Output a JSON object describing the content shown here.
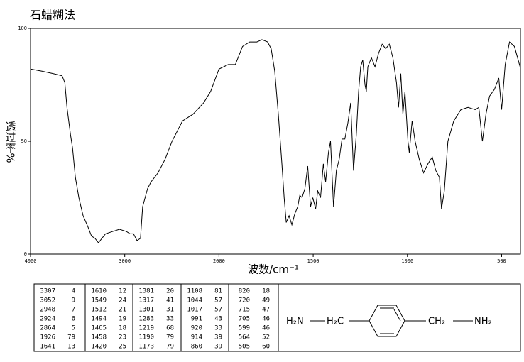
{
  "chart_data": {
    "type": "line",
    "title": "石蜡糊法",
    "x_label": "波数/cm⁻¹",
    "y_label": "透过率%",
    "xlim": [
      4000,
      400
    ],
    "ylim": [
      0,
      100
    ],
    "xticks": [
      4000,
      3000,
      2000,
      1500,
      1000,
      500
    ],
    "yticks": [
      0,
      50,
      100
    ],
    "series": [
      {
        "name": null,
        "color": "#000000",
        "x": [
          4000,
          3874,
          3762,
          3665,
          3636,
          3613,
          3576,
          3554,
          3524,
          3487,
          3442,
          3390,
          3353,
          3316,
          3279,
          3242,
          3204,
          3130,
          3056,
          2981,
          2944,
          2907,
          2870,
          2833,
          2810,
          2758,
          2721,
          2647,
          2572,
          2498,
          2387,
          2275,
          2163,
          2089,
          2000,
          1951,
          1913,
          1875,
          1837,
          1799,
          1772,
          1742,
          1723,
          1704,
          1685,
          1666,
          1654,
          1643,
          1628,
          1613,
          1597,
          1582,
          1571,
          1559,
          1544,
          1529,
          1514,
          1502,
          1487,
          1476,
          1461,
          1446,
          1434,
          1419,
          1408,
          1392,
          1377,
          1362,
          1347,
          1332,
          1316,
          1301,
          1286,
          1271,
          1259,
          1248,
          1237,
          1225,
          1218,
          1210,
          1191,
          1172,
          1153,
          1134,
          1115,
          1096,
          1077,
          1058,
          1047,
          1035,
          1024,
          1013,
          997,
          990,
          975,
          959,
          937,
          914,
          891,
          868,
          849,
          830,
          819,
          804,
          785,
          754,
          716,
          678,
          640,
          621,
          602,
          583,
          564,
          538,
          515,
          500,
          481,
          458,
          432,
          402
        ],
        "values": [
          82,
          81,
          80,
          79,
          76,
          65,
          53,
          47,
          34,
          25,
          17,
          12,
          8,
          7,
          5,
          7,
          9,
          10,
          11,
          10,
          9,
          9,
          6,
          7,
          21,
          29,
          32,
          36,
          42,
          50,
          59,
          62,
          67,
          72,
          82,
          84,
          84,
          92,
          94,
          94,
          95,
          94,
          91,
          81,
          62,
          40,
          25,
          14,
          17,
          13,
          18,
          21,
          26,
          25,
          29,
          39,
          21,
          25,
          20,
          28,
          25,
          40,
          32,
          45,
          50,
          21,
          37,
          42,
          51,
          51,
          58,
          67,
          37,
          53,
          72,
          83,
          86,
          75,
          72,
          83,
          87,
          83,
          89,
          93,
          91,
          93,
          87,
          76,
          65,
          80,
          62,
          72,
          50,
          45,
          59,
          50,
          42,
          36,
          40,
          43,
          37,
          34,
          20,
          28,
          50,
          59,
          64,
          65,
          64,
          65,
          50,
          62,
          70,
          73,
          78,
          64,
          84,
          94,
          92,
          83
        ]
      }
    ]
  },
  "peaks": [
    [
      [
        3307,
        4
      ],
      [
        3052,
        9
      ],
      [
        2948,
        7
      ],
      [
        2924,
        6
      ],
      [
        2864,
        5
      ],
      [
        1926,
        79
      ],
      [
        1641,
        13
      ]
    ],
    [
      [
        1610,
        12
      ],
      [
        1549,
        24
      ],
      [
        1512,
        21
      ],
      [
        1494,
        19
      ],
      [
        1465,
        18
      ],
      [
        1458,
        23
      ],
      [
        1420,
        25
      ]
    ],
    [
      [
        1381,
        20
      ],
      [
        1317,
        41
      ],
      [
        1301,
        31
      ],
      [
        1283,
        33
      ],
      [
        1219,
        68
      ],
      [
        1190,
        79
      ],
      [
        1173,
        79
      ]
    ],
    [
      [
        1108,
        81
      ],
      [
        1044,
        57
      ],
      [
        1017,
        57
      ],
      [
        991,
        43
      ],
      [
        920,
        33
      ],
      [
        914,
        39
      ],
      [
        860,
        39
      ]
    ],
    [
      [
        820,
        18
      ],
      [
        720,
        49
      ],
      [
        715,
        47
      ],
      [
        705,
        46
      ],
      [
        599,
        46
      ],
      [
        564,
        52
      ],
      [
        505,
        60
      ]
    ]
  ],
  "molecule": {
    "left_amine": "H₂N",
    "left_methylene": "H₂C",
    "right_methylene": "CH₂",
    "right_amine": "NH₂"
  }
}
